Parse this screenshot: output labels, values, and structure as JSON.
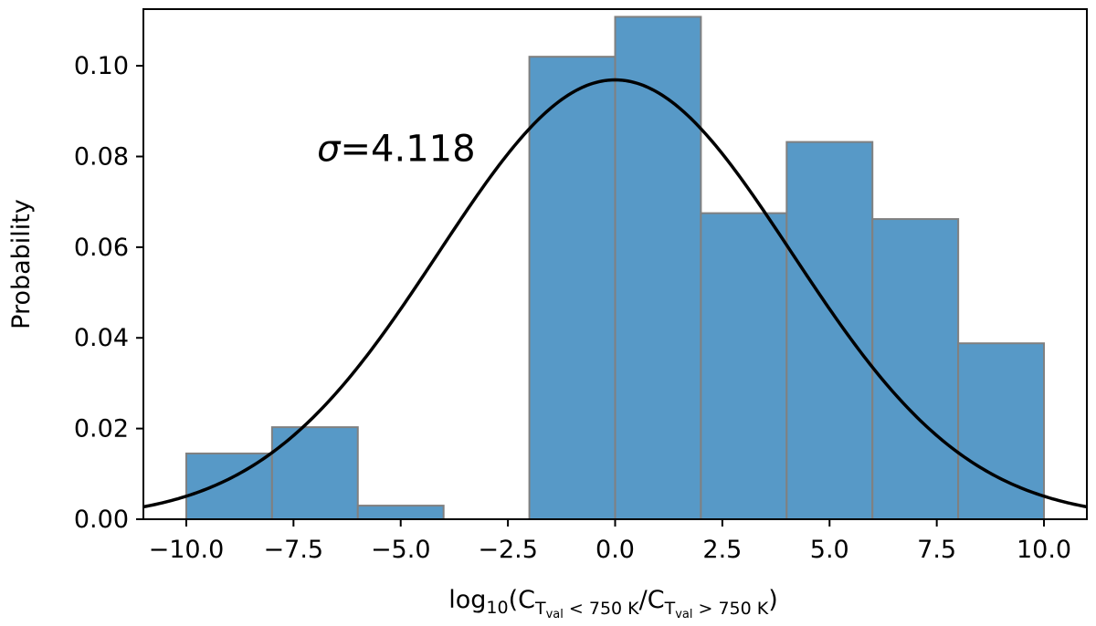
{
  "chart_data": {
    "type": "bar",
    "subtype": "histogram",
    "ylabel": "Probability",
    "xlabel": {
      "prefix": "log",
      "base": "10",
      "open": "(C",
      "sub1_main": "T",
      "sub1_sub": "val",
      "sub1_rest": " < 750 K",
      "slash": "/C",
      "sub2_main": "T",
      "sub2_sub": "val",
      "sub2_rest": " > 750 K",
      "close": ")"
    },
    "xlim": [
      -11.0,
      11.0
    ],
    "ylim": [
      0.0,
      0.1125
    ],
    "xticks": [
      -10.0,
      -7.5,
      -5.0,
      -2.5,
      0.0,
      2.5,
      5.0,
      7.5,
      10.0
    ],
    "xtick_labels": [
      "−10.0",
      "−7.5",
      "−5.0",
      "−2.5",
      "0.0",
      "2.5",
      "5.0",
      "7.5",
      "10.0"
    ],
    "yticks": [
      0.0,
      0.02,
      0.04,
      0.06,
      0.08,
      0.1
    ],
    "ytick_labels": [
      "0.00",
      "0.02",
      "0.04",
      "0.06",
      "0.08",
      "0.10"
    ],
    "bins": [
      {
        "x0": -10.0,
        "x1": -8.0,
        "value": 0.0145
      },
      {
        "x0": -8.0,
        "x1": -6.0,
        "value": 0.0203
      },
      {
        "x0": -6.0,
        "x1": -4.0,
        "value": 0.003
      },
      {
        "x0": -4.0,
        "x1": -2.0,
        "value": 0.0
      },
      {
        "x0": -2.0,
        "x1": 0.0,
        "value": 0.102
      },
      {
        "x0": 0.0,
        "x1": 2.0,
        "value": 0.1108
      },
      {
        "x0": 2.0,
        "x1": 4.0,
        "value": 0.0675
      },
      {
        "x0": 4.0,
        "x1": 6.0,
        "value": 0.0832
      },
      {
        "x0": 6.0,
        "x1": 8.0,
        "value": 0.0662
      },
      {
        "x0": 8.0,
        "x1": 10.0,
        "value": 0.0388
      }
    ],
    "fit_curve": {
      "type": "gaussian",
      "mean": 0.0,
      "sigma": 4.118,
      "peak": 0.0969
    },
    "annotation": {
      "symbol": "σ",
      "text": "=4.118",
      "x": -6.95,
      "y": 0.0818
    },
    "colors": {
      "bar_fill": "#5799c7",
      "bar_edge": "#808080",
      "curve": "#000000"
    },
    "grid": false
  }
}
